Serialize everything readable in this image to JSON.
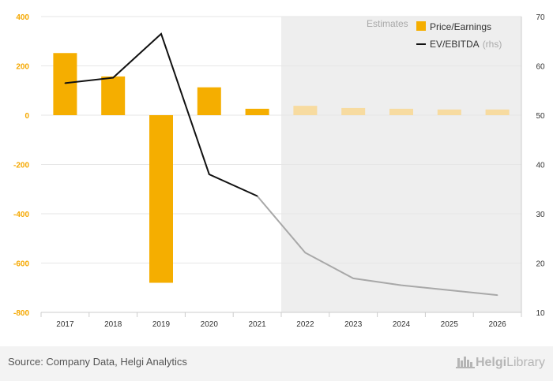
{
  "chart_data": {
    "type": "bar",
    "categories": [
      "2017",
      "2018",
      "2019",
      "2020",
      "2021",
      "2022",
      "2023",
      "2024",
      "2025",
      "2026"
    ],
    "series": [
      {
        "name": "Price/Earnings",
        "type": "bar",
        "axis": "left",
        "values": [
          252,
          157,
          -680,
          113,
          26,
          38,
          29,
          26,
          23,
          23
        ],
        "estimate_from_index": 5,
        "color": "#f5ae00",
        "estimate_color": "#f7dba0"
      },
      {
        "name": "EV/EBITDA",
        "name_suffix": "(rhs)",
        "type": "line",
        "axis": "right",
        "values": [
          56.5,
          57.6,
          66.5,
          38,
          33.6,
          22.1,
          16.9,
          15.5,
          14.5,
          13.5
        ],
        "color": "#111111",
        "estimate_color": "#a8a8a8"
      }
    ],
    "y_left": {
      "min": -800,
      "max": 400,
      "ticks": [
        "400",
        "200",
        "0",
        "-200",
        "-400",
        "-600",
        "-800"
      ],
      "tick_values": [
        400,
        200,
        0,
        -200,
        -400,
        -600,
        -800
      ],
      "color": "#f5a800"
    },
    "y_right": {
      "min": 10,
      "max": 70,
      "ticks": [
        "70",
        "60",
        "50",
        "40",
        "30",
        "20",
        "10"
      ],
      "tick_values": [
        70,
        60,
        50,
        40,
        30,
        20,
        10
      ]
    },
    "estimates_label": "Estimates",
    "grid": true,
    "legend_position": "top-right"
  },
  "footer": {
    "source": "Source: Company Data, Helgi Analytics",
    "logo_text_bold": "Helgi",
    "logo_text": "Library"
  }
}
